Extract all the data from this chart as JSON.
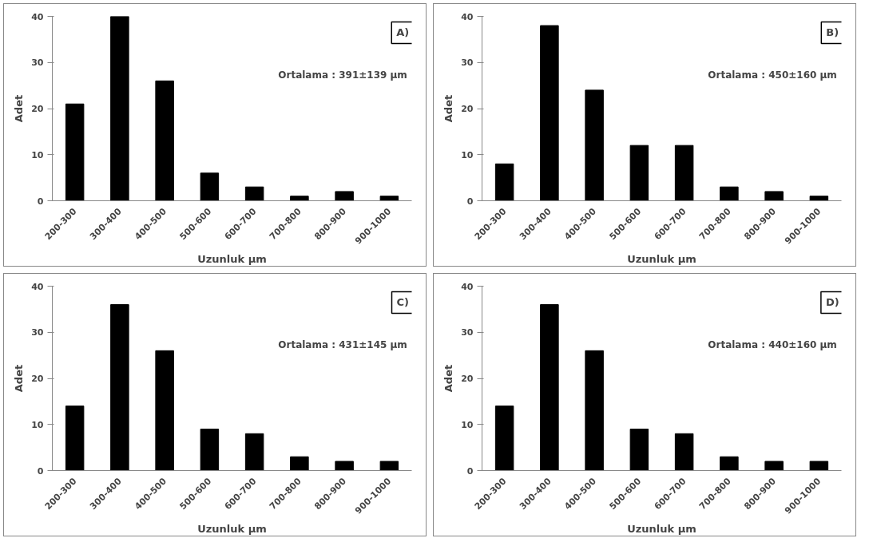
{
  "chart_data": [
    {
      "type": "bar",
      "title": "A)",
      "xlabel": "Uzunluk µm",
      "ylabel": "Adet",
      "categories": [
        "200-300",
        "300-400",
        "400-500",
        "500-600",
        "600-700",
        "700-800",
        "800-900",
        "900-1000"
      ],
      "values": [
        21,
        40,
        26,
        6,
        3,
        1,
        2,
        1
      ],
      "color": "#000000",
      "ylim": [
        0,
        40
      ],
      "yticks": [
        0,
        10,
        20,
        30,
        40
      ],
      "grid": false,
      "annotations": [
        "Ortalama : 391±139 µm"
      ]
    },
    {
      "type": "bar",
      "title": "B)",
      "xlabel": "Uzunluk µm",
      "ylabel": "Adet",
      "categories": [
        "200-300",
        "300-400",
        "400-500",
        "500-600",
        "600-700",
        "700-800",
        "800-900",
        "900-1000"
      ],
      "values": [
        8,
        38,
        24,
        12,
        12,
        3,
        2,
        1
      ],
      "color": "#000000",
      "ylim": [
        0,
        40
      ],
      "yticks": [
        0,
        10,
        20,
        30,
        40
      ],
      "grid": false,
      "annotations": [
        "Ortalama : 450±160 µm"
      ]
    },
    {
      "type": "bar",
      "title": "C)",
      "xlabel": "Uzunluk µm",
      "ylabel": "Adet",
      "categories": [
        "200-300",
        "300-400",
        "400-500",
        "500-600",
        "600-700",
        "700-800",
        "800-900",
        "900-1000"
      ],
      "values": [
        14,
        36,
        26,
        9,
        8,
        3,
        2,
        2
      ],
      "color": "#000000",
      "ylim": [
        0,
        40
      ],
      "yticks": [
        0,
        10,
        20,
        30,
        40
      ],
      "grid": false,
      "annotations": [
        "Ortalama : 431±145 µm"
      ]
    },
    {
      "type": "bar",
      "title": "D)",
      "xlabel": "Uzunluk µm",
      "ylabel": "Adet",
      "categories": [
        "200-300",
        "300-400",
        "400-500",
        "500-600",
        "600-700",
        "700-800",
        "800-900",
        "900-1000"
      ],
      "values": [
        14,
        36,
        26,
        9,
        8,
        3,
        2,
        2
      ],
      "color": "#000000",
      "ylim": [
        0,
        40
      ],
      "yticks": [
        0,
        10,
        20,
        30,
        40
      ],
      "grid": false,
      "annotations": [
        "Ortalama : 440±160 µm"
      ]
    }
  ]
}
